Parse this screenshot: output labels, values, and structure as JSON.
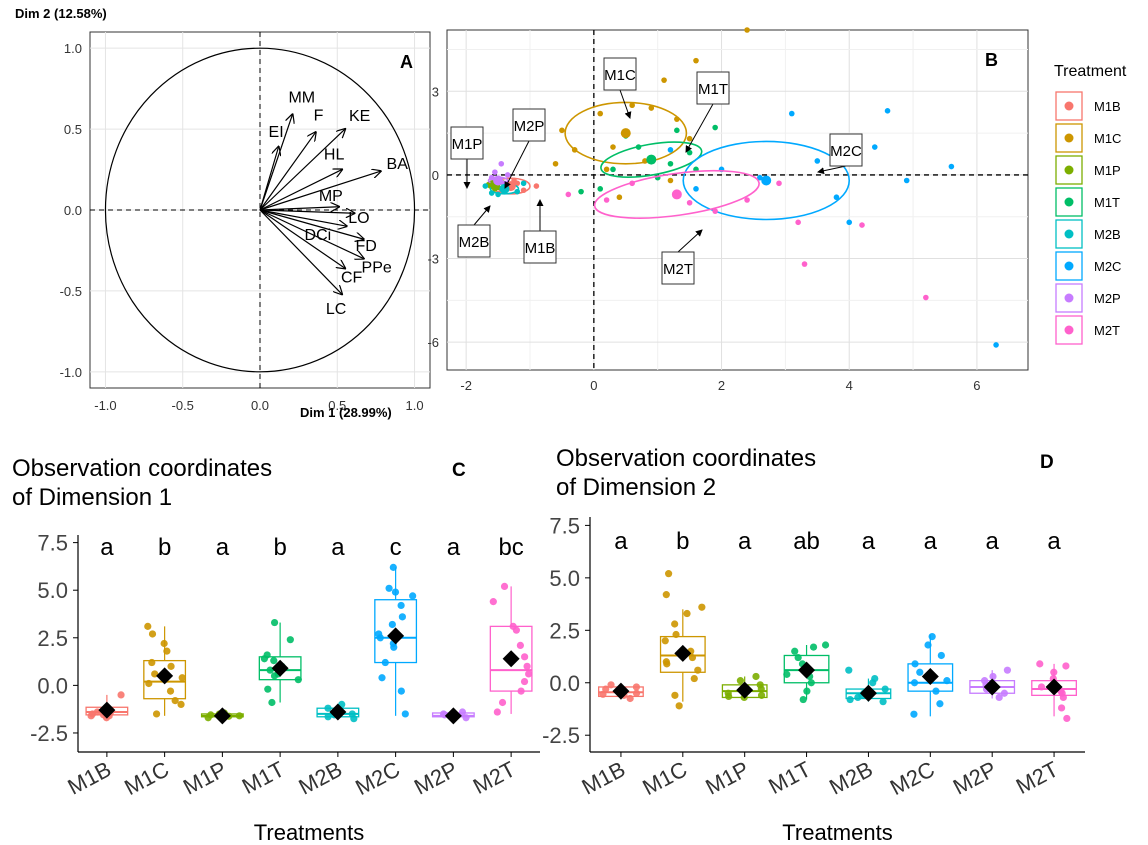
{
  "colors": {
    "M1B": "#F8766D",
    "M1C": "#CD9600",
    "M1P": "#7CAE00",
    "M1T": "#00BE67",
    "M2B": "#00BFC4",
    "M2C": "#00A9FF",
    "M2P": "#C77CFF",
    "M2T": "#FF61CC"
  },
  "chart_data": [
    {
      "panel": "A",
      "type": "scatter",
      "subtype": "pca-correlation-circle",
      "xlabel": "Dim 1 (28.99%)",
      "ylabel": "Dim 2 (12.58%)",
      "xlim": [
        -1.1,
        1.1
      ],
      "ylim": [
        -1.1,
        1.1
      ],
      "xticks": [
        "-1.0",
        "-0.5",
        "0.0",
        "0.5",
        "1.0"
      ],
      "yticks": [
        "-1.0",
        "-0.5",
        "0.0",
        "0.5",
        "1.0"
      ],
      "grid": true,
      "vectors": [
        {
          "name": "EI",
          "x": 0.12,
          "y": 0.39
        },
        {
          "name": "MM",
          "x": 0.21,
          "y": 0.59
        },
        {
          "name": "F",
          "x": 0.36,
          "y": 0.48
        },
        {
          "name": "KE",
          "x": 0.55,
          "y": 0.5
        },
        {
          "name": "HL",
          "x": 0.53,
          "y": 0.25
        },
        {
          "name": "BA",
          "x": 0.78,
          "y": 0.24
        },
        {
          "name": "MP",
          "x": 0.51,
          "y": 0.02
        },
        {
          "name": "LO",
          "x": 0.61,
          "y": -0.02
        },
        {
          "name": "DCi",
          "x": 0.56,
          "y": -0.1
        },
        {
          "name": "FD",
          "x": 0.67,
          "y": -0.18
        },
        {
          "name": "PPe",
          "x": 0.67,
          "y": -0.3
        },
        {
          "name": "CF",
          "x": 0.55,
          "y": -0.36
        },
        {
          "name": "LC",
          "x": 0.53,
          "y": -0.52
        }
      ]
    },
    {
      "panel": "B",
      "type": "scatter",
      "subtype": "pca-individuals",
      "xlim": [
        -2.3,
        6.8
      ],
      "ylim": [
        -7.0,
        5.2
      ],
      "xticks": [
        "-2",
        "0",
        "2",
        "4",
        "6"
      ],
      "yticks": [
        "3",
        "0",
        "-3",
        "-6"
      ],
      "grid": true,
      "legend_title": "Treatment",
      "legend": [
        "M1B",
        "M1C",
        "M1P",
        "M1T",
        "M2B",
        "M2C",
        "M2P",
        "M2T"
      ],
      "groups": [
        {
          "name": "M1B",
          "center": [
            -1.3,
            -0.4
          ],
          "rx": 0.3,
          "ry": 0.28,
          "angle": 0,
          "points": [
            [
              -1.55,
              -0.3
            ],
            [
              -1.4,
              -0.5
            ],
            [
              -1.25,
              -0.2
            ],
            [
              -1.1,
              -0.55
            ],
            [
              -1.3,
              -0.4
            ],
            [
              -1.2,
              -0.3
            ],
            [
              -0.9,
              -0.4
            ],
            [
              -1.45,
              -0.6
            ]
          ]
        },
        {
          "name": "M1C",
          "center": [
            0.5,
            1.5
          ],
          "rx": 0.95,
          "ry": 1.1,
          "angle": 0,
          "points": [
            [
              0.5,
              1.5
            ],
            [
              0.6,
              2.5
            ],
            [
              0.9,
              2.4
            ],
            [
              1.1,
              3.4
            ],
            [
              0.1,
              2.2
            ],
            [
              -0.5,
              1.6
            ],
            [
              0.3,
              1.0
            ],
            [
              1.3,
              2.0
            ],
            [
              1.5,
              1.3
            ],
            [
              0.8,
              0.5
            ],
            [
              0.2,
              0.2
            ],
            [
              2.4,
              5.2
            ],
            [
              1.6,
              4.1
            ],
            [
              0.4,
              -0.8
            ],
            [
              -0.3,
              0.9
            ],
            [
              1.2,
              -0.2
            ],
            [
              -0.6,
              0.4
            ]
          ]
        },
        {
          "name": "M1P",
          "center": [
            -1.55,
            -0.35
          ],
          "rx": 0.12,
          "ry": 0.15,
          "angle": 0,
          "points": [
            [
              -1.6,
              -0.4
            ],
            [
              -1.5,
              -0.3
            ],
            [
              -1.55,
              -0.5
            ],
            [
              -1.45,
              -0.25
            ],
            [
              -1.65,
              -0.35
            ],
            [
              -1.5,
              -0.45
            ]
          ]
        },
        {
          "name": "M1T",
          "center": [
            0.9,
            0.55
          ],
          "rx": 0.8,
          "ry": 0.55,
          "angle": -10,
          "points": [
            [
              0.9,
              0.6
            ],
            [
              0.5,
              1.4
            ],
            [
              1.3,
              1.6
            ],
            [
              1.5,
              0.8
            ],
            [
              0.3,
              0.2
            ],
            [
              1.0,
              -0.1
            ],
            [
              1.6,
              0.2
            ],
            [
              0.7,
              1.0
            ],
            [
              1.9,
              1.7
            ],
            [
              0.1,
              -0.5
            ],
            [
              1.2,
              0.4
            ],
            [
              -0.2,
              -0.6
            ]
          ]
        },
        {
          "name": "M2B",
          "center": [
            -1.4,
            -0.5
          ],
          "rx": 0.22,
          "ry": 0.18,
          "angle": 0,
          "points": [
            [
              -1.4,
              -0.5
            ],
            [
              -1.6,
              -0.65
            ],
            [
              -1.3,
              -0.4
            ],
            [
              -1.7,
              -0.4
            ],
            [
              -1.2,
              -0.6
            ],
            [
              -1.5,
              -0.7
            ],
            [
              -1.1,
              -0.3
            ]
          ]
        },
        {
          "name": "M2C",
          "center": [
            2.7,
            -0.2
          ],
          "rx": 1.3,
          "ry": 1.4,
          "angle": 0,
          "points": [
            [
              2.7,
              -0.2
            ],
            [
              2.6,
              -0.1
            ],
            [
              3.5,
              0.5
            ],
            [
              3.1,
              2.2
            ],
            [
              4.6,
              2.3
            ],
            [
              5.6,
              0.3
            ],
            [
              4.9,
              -0.2
            ],
            [
              4.0,
              -1.7
            ],
            [
              6.3,
              -6.1
            ],
            [
              2.0,
              0.2
            ],
            [
              1.6,
              -0.5
            ],
            [
              3.8,
              -0.8
            ],
            [
              4.4,
              1.0
            ],
            [
              1.2,
              0.9
            ]
          ]
        },
        {
          "name": "M2P",
          "center": [
            -1.5,
            -0.2
          ],
          "rx": 0.15,
          "ry": 0.12,
          "angle": 0,
          "points": [
            [
              -1.5,
              -0.2
            ],
            [
              -1.45,
              0.4
            ],
            [
              -1.55,
              0.1
            ],
            [
              -1.4,
              -0.3
            ],
            [
              -1.6,
              -0.1
            ],
            [
              -1.35,
              0.0
            ]
          ]
        },
        {
          "name": "M2T",
          "center": [
            1.3,
            -0.7
          ],
          "rx": 1.3,
          "ry": 0.75,
          "angle": -8,
          "points": [
            [
              1.3,
              -0.7
            ],
            [
              0.6,
              -0.3
            ],
            [
              1.5,
              -1.0
            ],
            [
              2.4,
              -0.9
            ],
            [
              3.2,
              -1.7
            ],
            [
              3.3,
              -3.2
            ],
            [
              5.2,
              -4.4
            ],
            [
              4.2,
              -1.8
            ],
            [
              0.2,
              -0.9
            ],
            [
              2.9,
              -0.3
            ],
            [
              -0.4,
              -0.7
            ],
            [
              1.9,
              -1.3
            ]
          ]
        }
      ],
      "centroids": [
        {
          "name": "M1B",
          "x": -1.3,
          "y": -0.4
        },
        {
          "name": "M1C",
          "x": 0.5,
          "y": 1.5
        },
        {
          "name": "M1P",
          "x": -1.55,
          "y": -0.35
        },
        {
          "name": "M1T",
          "x": 0.9,
          "y": 0.55
        },
        {
          "name": "M2B",
          "x": -1.4,
          "y": -0.5
        },
        {
          "name": "M2C",
          "x": 2.7,
          "y": -0.2
        },
        {
          "name": "M2P",
          "x": -1.5,
          "y": -0.2
        },
        {
          "name": "M2T",
          "x": 1.3,
          "y": -0.7
        }
      ],
      "annotations": [
        "M1C",
        "M1T",
        "M2C",
        "M1P",
        "M2P",
        "M2B",
        "M1B",
        "M2T"
      ]
    },
    {
      "panel": "C",
      "type": "box",
      "title": "Observation coordinates\nof Dimension 1",
      "xlabel": "Treatments",
      "ylim": [
        -3.5,
        7.9
      ],
      "yticks": [
        "7.5",
        "5.0",
        "2.5",
        "0.0",
        "-2.5"
      ],
      "categories": [
        "M1B",
        "M1C",
        "M1P",
        "M1T",
        "M2B",
        "M2C",
        "M2P",
        "M2T"
      ],
      "letters": [
        "a",
        "b",
        "a",
        "b",
        "a",
        "c",
        "a",
        "bc"
      ],
      "boxes": [
        {
          "min": -1.75,
          "q1": -1.55,
          "median": -1.4,
          "q3": -1.15,
          "max": -0.5,
          "mean": -1.3
        },
        {
          "min": -1.6,
          "q1": -0.7,
          "median": 0.2,
          "q3": 1.3,
          "max": 3.1,
          "mean": 0.5
        },
        {
          "min": -1.75,
          "q1": -1.65,
          "median": -1.6,
          "q3": -1.5,
          "max": -1.4,
          "mean": -1.6
        },
        {
          "min": -0.9,
          "q1": 0.3,
          "median": 0.8,
          "q3": 1.5,
          "max": 3.3,
          "mean": 0.9
        },
        {
          "min": -1.75,
          "q1": -1.65,
          "median": -1.5,
          "q3": -1.2,
          "max": -1.0,
          "mean": -1.4
        },
        {
          "min": -1.6,
          "q1": 1.2,
          "median": 2.5,
          "q3": 4.5,
          "max": 6.2,
          "mean": 2.6
        },
        {
          "min": -1.75,
          "q1": -1.65,
          "median": -1.6,
          "q3": -1.45,
          "max": -1.35,
          "mean": -1.6
        },
        {
          "min": -1.5,
          "q1": -0.3,
          "median": 0.8,
          "q3": 3.1,
          "max": 5.2,
          "mean": 1.4
        }
      ],
      "points": [
        [
          -1.7,
          -1.6,
          -1.5,
          -1.4,
          -1.3,
          -1.2,
          -1.6,
          -0.5,
          -1.45,
          -1.55
        ],
        [
          -1.5,
          -0.8,
          -0.3,
          0.1,
          0.3,
          0.6,
          1.0,
          1.2,
          1.8,
          2.2,
          2.7,
          3.1,
          -1.0,
          0.4
        ],
        [
          -1.7,
          -1.65,
          -1.6,
          -1.55,
          -1.5,
          -1.45,
          -1.62
        ],
        [
          -0.9,
          -0.2,
          0.3,
          0.6,
          0.8,
          1.0,
          1.3,
          1.6,
          2.4,
          3.3,
          0.5,
          1.4
        ],
        [
          -1.75,
          -1.65,
          -1.5,
          -1.3,
          -1.2,
          -1.0,
          -1.55
        ],
        [
          -1.5,
          -0.3,
          0.4,
          1.2,
          2.0,
          2.5,
          2.7,
          3.2,
          3.6,
          4.2,
          4.7,
          5.1,
          6.2,
          4.9,
          2.2
        ],
        [
          -1.7,
          -1.65,
          -1.6,
          -1.55,
          -1.5,
          -1.4
        ],
        [
          -1.4,
          -0.9,
          -0.3,
          0.2,
          0.6,
          1.0,
          1.5,
          2.1,
          2.9,
          3.1,
          4.4,
          5.2
        ]
      ]
    },
    {
      "panel": "D",
      "type": "box",
      "title": "Observation coordinates\nof Dimension 2",
      "xlabel": "Treatments",
      "ylim": [
        -3.3,
        7.9
      ],
      "yticks": [
        "7.5",
        "5.0",
        "2.5",
        "0.0",
        "-2.5"
      ],
      "categories": [
        "M1B",
        "M1C",
        "M1P",
        "M1T",
        "M2B",
        "M2C",
        "M2P",
        "M2T"
      ],
      "letters": [
        "a",
        "b",
        "a",
        "ab",
        "a",
        "a",
        "a",
        "a"
      ],
      "boxes": [
        {
          "min": -0.8,
          "q1": -0.65,
          "median": -0.45,
          "q3": -0.2,
          "max": -0.05,
          "mean": -0.4
        },
        {
          "min": -0.9,
          "q1": 0.5,
          "median": 1.3,
          "q3": 2.2,
          "max": 3.5,
          "mean": 1.4
        },
        {
          "min": -0.75,
          "q1": -0.7,
          "median": -0.4,
          "q3": -0.1,
          "max": 0.3,
          "mean": -0.35
        },
        {
          "min": -0.8,
          "q1": 0.0,
          "median": 0.6,
          "q3": 1.3,
          "max": 1.8,
          "mean": 0.6
        },
        {
          "min": -0.9,
          "q1": -0.75,
          "median": -0.5,
          "q3": -0.3,
          "max": 0.2,
          "mean": -0.5
        },
        {
          "min": -1.6,
          "q1": -0.4,
          "median": 0.0,
          "q3": 0.9,
          "max": 2.3,
          "mean": 0.3
        },
        {
          "min": -0.75,
          "q1": -0.5,
          "median": -0.2,
          "q3": 0.1,
          "max": 0.6,
          "mean": -0.2
        },
        {
          "min": -1.6,
          "q1": -0.6,
          "median": -0.3,
          "q3": 0.1,
          "max": 0.9,
          "mean": -0.2
        }
      ],
      "points": [
        [
          -0.75,
          -0.6,
          -0.5,
          -0.4,
          -0.3,
          -0.2,
          -0.1,
          -0.55
        ],
        [
          -1.1,
          -0.6,
          0.2,
          0.6,
          0.9,
          1.2,
          1.5,
          2.0,
          2.3,
          2.8,
          3.3,
          3.6,
          4.2,
          5.2,
          1.0
        ],
        [
          -0.7,
          -0.65,
          -0.5,
          -0.3,
          -0.1,
          0.1,
          0.3,
          -0.6
        ],
        [
          -0.8,
          -0.4,
          0.0,
          0.3,
          0.6,
          0.9,
          1.2,
          1.5,
          1.7,
          1.8,
          0.4
        ],
        [
          -0.9,
          -0.8,
          -0.6,
          -0.5,
          -0.3,
          0.0,
          0.2,
          0.6,
          -0.7
        ],
        [
          -1.5,
          -1.0,
          -0.4,
          0.0,
          0.2,
          0.5,
          0.9,
          1.3,
          1.8,
          2.2,
          0.1
        ],
        [
          -0.7,
          -0.5,
          -0.3,
          -0.1,
          0.1,
          0.3,
          0.6,
          -0.2
        ],
        [
          -1.7,
          -1.2,
          -0.7,
          -0.4,
          -0.2,
          0.2,
          0.5,
          0.8,
          0.9,
          -0.5
        ]
      ]
    }
  ]
}
